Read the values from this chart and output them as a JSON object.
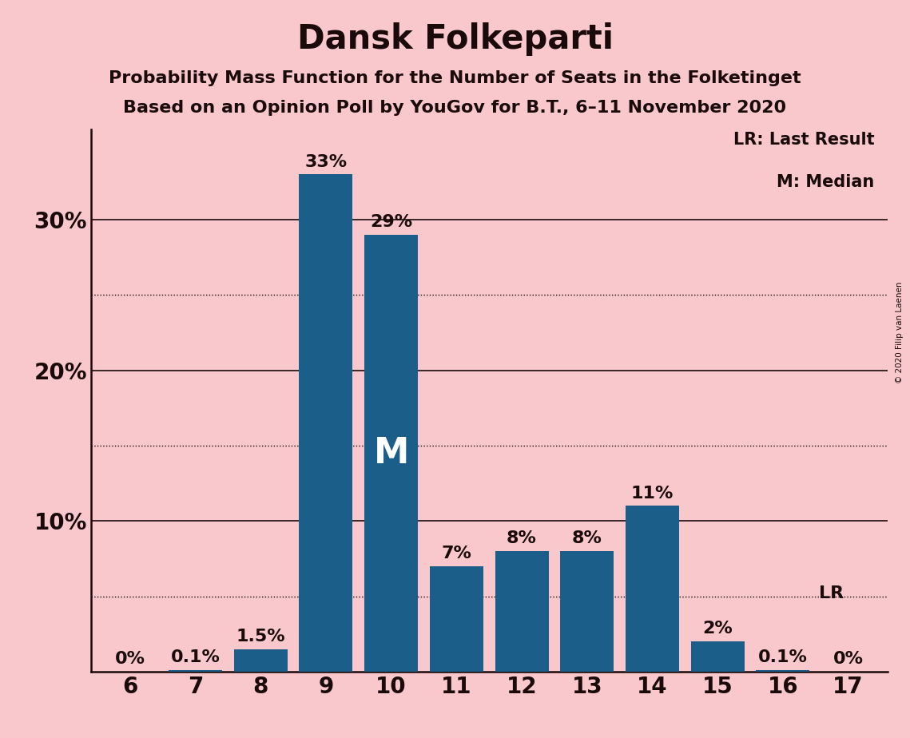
{
  "title": "Dansk Folkeparti",
  "subtitle1": "Probability Mass Function for the Number of Seats in the Folketinget",
  "subtitle2": "Based on an Opinion Poll by YouGov for B.T., 6–11 November 2020",
  "copyright": "© 2020 Filip van Laenen",
  "categories": [
    6,
    7,
    8,
    9,
    10,
    11,
    12,
    13,
    14,
    15,
    16,
    17
  ],
  "values": [
    0.0,
    0.1,
    1.5,
    33.0,
    29.0,
    7.0,
    8.0,
    8.0,
    11.0,
    2.0,
    0.1,
    0.0
  ],
  "labels": [
    "0%",
    "0.1%",
    "1.5%",
    "33%",
    "29%",
    "7%",
    "8%",
    "8%",
    "11%",
    "2%",
    "0.1%",
    "0%"
  ],
  "bar_color": "#1b5e8a",
  "background_color": "#f8c8cc",
  "median_bar": 10,
  "median_label": "M",
  "lr_bar": 16,
  "lr_label": "LR",
  "legend_lr": "LR: Last Result",
  "legend_m": "M: Median",
  "yticks": [
    10,
    20,
    30
  ],
  "ytick_labels": [
    "10%",
    "20%",
    "30%"
  ],
  "dotted_yticks": [
    5,
    15,
    25
  ],
  "ylim_max": 36,
  "title_fontsize": 30,
  "subtitle_fontsize": 16,
  "bar_label_fontsize": 16,
  "axis_fontsize": 20,
  "legend_fontsize": 15
}
